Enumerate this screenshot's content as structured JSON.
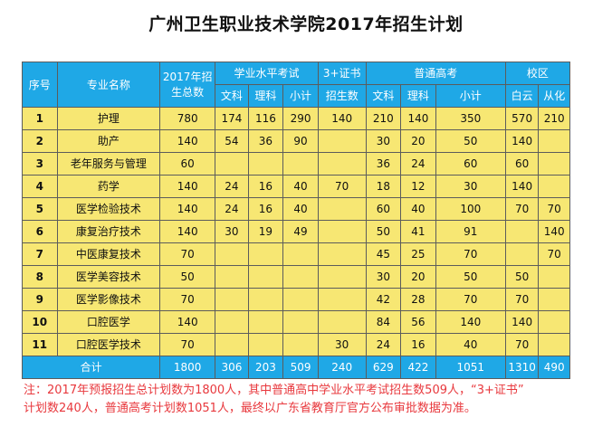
{
  "title": "广州卫生职业技术学院2017年招生计划",
  "headers": {
    "seq": "序号",
    "major": "专业名称",
    "total_plan": "2017年招生总数",
    "academic": "学业水平考试",
    "academic_sub": [
      "文科",
      "理科",
      "小计"
    ],
    "cert": "3+证书",
    "cert_sub": [
      "招生数"
    ],
    "gaokao": "普通高考",
    "gaokao_sub": [
      "文科",
      "理科",
      "小计"
    ],
    "campus": "校区",
    "campus_sub": [
      "白云",
      "从化"
    ]
  },
  "rows": [
    {
      "seq": "1",
      "major": "护理",
      "total": "780",
      "ac_wen": "174",
      "ac_li": "116",
      "ac_sub": "290",
      "cert": "140",
      "gk_wen": "210",
      "gk_li": "140",
      "gk_sub": "350",
      "baiyun": "570",
      "conghua": "210"
    },
    {
      "seq": "2",
      "major": "助产",
      "total": "140",
      "ac_wen": "54",
      "ac_li": "36",
      "ac_sub": "90",
      "cert": "",
      "gk_wen": "30",
      "gk_li": "20",
      "gk_sub": "50",
      "baiyun": "140",
      "conghua": ""
    },
    {
      "seq": "3",
      "major": "老年服务与管理",
      "total": "60",
      "ac_wen": "",
      "ac_li": "",
      "ac_sub": "",
      "cert": "",
      "gk_wen": "36",
      "gk_li": "24",
      "gk_sub": "60",
      "baiyun": "60",
      "conghua": ""
    },
    {
      "seq": "4",
      "major": "药学",
      "total": "140",
      "ac_wen": "24",
      "ac_li": "16",
      "ac_sub": "40",
      "cert": "70",
      "gk_wen": "18",
      "gk_li": "12",
      "gk_sub": "30",
      "baiyun": "140",
      "conghua": ""
    },
    {
      "seq": "5",
      "major": "医学检验技术",
      "total": "140",
      "ac_wen": "24",
      "ac_li": "16",
      "ac_sub": "40",
      "cert": "",
      "gk_wen": "60",
      "gk_li": "40",
      "gk_sub": "100",
      "baiyun": "70",
      "conghua": "70"
    },
    {
      "seq": "6",
      "major": "康复治疗技术",
      "total": "140",
      "ac_wen": "30",
      "ac_li": "19",
      "ac_sub": "49",
      "cert": "",
      "gk_wen": "50",
      "gk_li": "41",
      "gk_sub": "91",
      "baiyun": "",
      "conghua": "140"
    },
    {
      "seq": "7",
      "major": "中医康复技术",
      "total": "70",
      "ac_wen": "",
      "ac_li": "",
      "ac_sub": "",
      "cert": "",
      "gk_wen": "45",
      "gk_li": "25",
      "gk_sub": "70",
      "baiyun": "",
      "conghua": "70"
    },
    {
      "seq": "8",
      "major": "医学美容技术",
      "total": "50",
      "ac_wen": "",
      "ac_li": "",
      "ac_sub": "",
      "cert": "",
      "gk_wen": "30",
      "gk_li": "20",
      "gk_sub": "50",
      "baiyun": "50",
      "conghua": ""
    },
    {
      "seq": "9",
      "major": "医学影像技术",
      "total": "70",
      "ac_wen": "",
      "ac_li": "",
      "ac_sub": "",
      "cert": "",
      "gk_wen": "42",
      "gk_li": "28",
      "gk_sub": "70",
      "baiyun": "70",
      "conghua": ""
    },
    {
      "seq": "10",
      "major": "口腔医学",
      "total": "140",
      "ac_wen": "",
      "ac_li": "",
      "ac_sub": "",
      "cert": "",
      "gk_wen": "84",
      "gk_li": "56",
      "gk_sub": "140",
      "baiyun": "140",
      "conghua": ""
    },
    {
      "seq": "11",
      "major": "口腔医学技术",
      "total": "70",
      "ac_wen": "",
      "ac_li": "",
      "ac_sub": "",
      "cert": "30",
      "gk_wen": "24",
      "gk_li": "16",
      "gk_sub": "40",
      "baiyun": "70",
      "conghua": ""
    }
  ],
  "total_row": {
    "label": "合计",
    "total": "1800",
    "ac_wen": "306",
    "ac_li": "203",
    "ac_sub": "509",
    "cert": "240",
    "gk_wen": "629",
    "gk_li": "422",
    "gk_sub": "1051",
    "baiyun": "1310",
    "conghua": "490"
  },
  "note_lines": [
    "注：2017年预报招生总计划数为1800人，其中普通高中学业水平考试招生数509人，“3+证书”",
    "计划数240人，普通高考计划数1051人，最终以广东省教育厅官方公布审批数据为准。"
  ],
  "colors": {
    "header": "#1fa8e6",
    "cell": "#f7e773",
    "note": "#e8383d"
  }
}
